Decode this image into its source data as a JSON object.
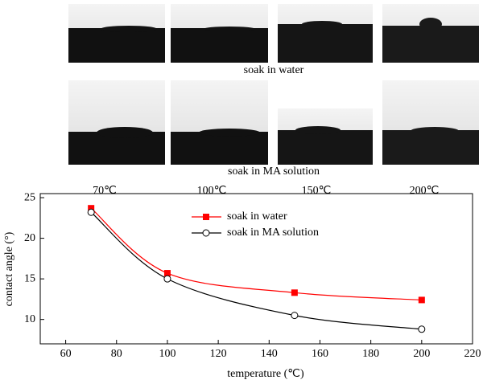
{
  "figure": {
    "row_labels": [
      "soak in water",
      "soak in MA solution"
    ],
    "column_labels": [
      "70℃",
      "100℃",
      "150℃",
      "200℃"
    ]
  },
  "chart_data": {
    "type": "line",
    "x_label": "temperature (℃)",
    "y_label": "contact angle (°)",
    "x": [
      70,
      100,
      150,
      200
    ],
    "series": [
      {
        "name": "soak in water",
        "color": "#ff0000",
        "marker": "filled-square",
        "values": [
          23.7,
          15.7,
          13.3,
          12.4
        ]
      },
      {
        "name": "soak in MA solution",
        "color": "#000000",
        "marker": "open-circle",
        "values": [
          23.2,
          15.0,
          10.5,
          8.8
        ]
      }
    ],
    "xlim": [
      50,
      220
    ],
    "xticks": [
      60,
      80,
      100,
      120,
      140,
      160,
      180,
      200,
      220
    ],
    "ylim": [
      7,
      25.5
    ],
    "yticks": [
      10,
      15,
      20,
      25
    ],
    "grid": false
  }
}
